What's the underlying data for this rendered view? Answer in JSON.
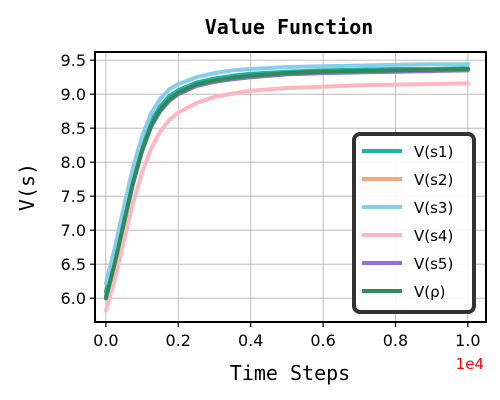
{
  "chart_data": {
    "type": "line",
    "title": "Value Function",
    "xlabel": "Time Steps",
    "ylabel": "V(s)",
    "x_offset_label": "1e4",
    "x_offset_color": "#ff0000",
    "xlim": [
      -0.03,
      1.05
    ],
    "ylim": [
      5.65,
      9.62
    ],
    "xticks": [
      0.0,
      0.2,
      0.4,
      0.6,
      0.8,
      1.0
    ],
    "xtick_labels": [
      "0.0",
      "0.2",
      "0.4",
      "0.6",
      "0.8",
      "1.0"
    ],
    "yticks": [
      6.0,
      6.5,
      7.0,
      7.5,
      8.0,
      8.5,
      9.0,
      9.5
    ],
    "ytick_labels": [
      "6.0",
      "6.5",
      "7.0",
      "7.5",
      "8.0",
      "8.5",
      "9.0",
      "9.5"
    ],
    "grid": true,
    "legend_position": "lower-right",
    "x": [
      0,
      0.025,
      0.05,
      0.075,
      0.1,
      0.125,
      0.15,
      0.175,
      0.2,
      0.25,
      0.3,
      0.35,
      0.4,
      0.5,
      0.6,
      0.7,
      0.8,
      0.9,
      1.0
    ],
    "series": [
      {
        "name": "V(s1)",
        "color": "#20b2aa",
        "values": [
          6.1,
          6.6,
          7.2,
          7.78,
          8.25,
          8.6,
          8.82,
          8.97,
          9.06,
          9.17,
          9.23,
          9.27,
          9.3,
          9.33,
          9.35,
          9.36,
          9.37,
          9.37,
          9.38
        ]
      },
      {
        "name": "V(s2)",
        "color": "#f4a582",
        "values": [
          6.05,
          6.55,
          7.15,
          7.72,
          8.2,
          8.56,
          8.78,
          8.93,
          9.03,
          9.14,
          9.2,
          9.24,
          9.27,
          9.31,
          9.33,
          9.34,
          9.35,
          9.36,
          9.37
        ]
      },
      {
        "name": "V(s3)",
        "color": "#87ceeb",
        "values": [
          6.22,
          6.75,
          7.35,
          7.92,
          8.38,
          8.72,
          8.93,
          9.07,
          9.15,
          9.25,
          9.31,
          9.35,
          9.37,
          9.4,
          9.41,
          9.42,
          9.43,
          9.44,
          9.44
        ]
      },
      {
        "name": "V(s4)",
        "color": "#ffb6c1",
        "values": [
          5.82,
          6.28,
          6.85,
          7.4,
          7.85,
          8.2,
          8.45,
          8.62,
          8.73,
          8.87,
          8.96,
          9.01,
          9.05,
          9.09,
          9.11,
          9.13,
          9.14,
          9.15,
          9.16
        ]
      },
      {
        "name": "V(s5)",
        "color": "#9370db",
        "values": [
          6.0,
          6.5,
          7.1,
          7.68,
          8.16,
          8.52,
          8.75,
          8.9,
          9.0,
          9.12,
          9.18,
          9.22,
          9.25,
          9.29,
          9.31,
          9.32,
          9.33,
          9.34,
          9.35
        ]
      },
      {
        "name": "V(ρ)",
        "color": "#2e8b57",
        "values": [
          6.0,
          6.52,
          7.12,
          7.7,
          8.18,
          8.54,
          8.77,
          8.92,
          9.02,
          9.14,
          9.2,
          9.24,
          9.27,
          9.31,
          9.33,
          9.34,
          9.35,
          9.36,
          9.37
        ]
      }
    ]
  }
}
